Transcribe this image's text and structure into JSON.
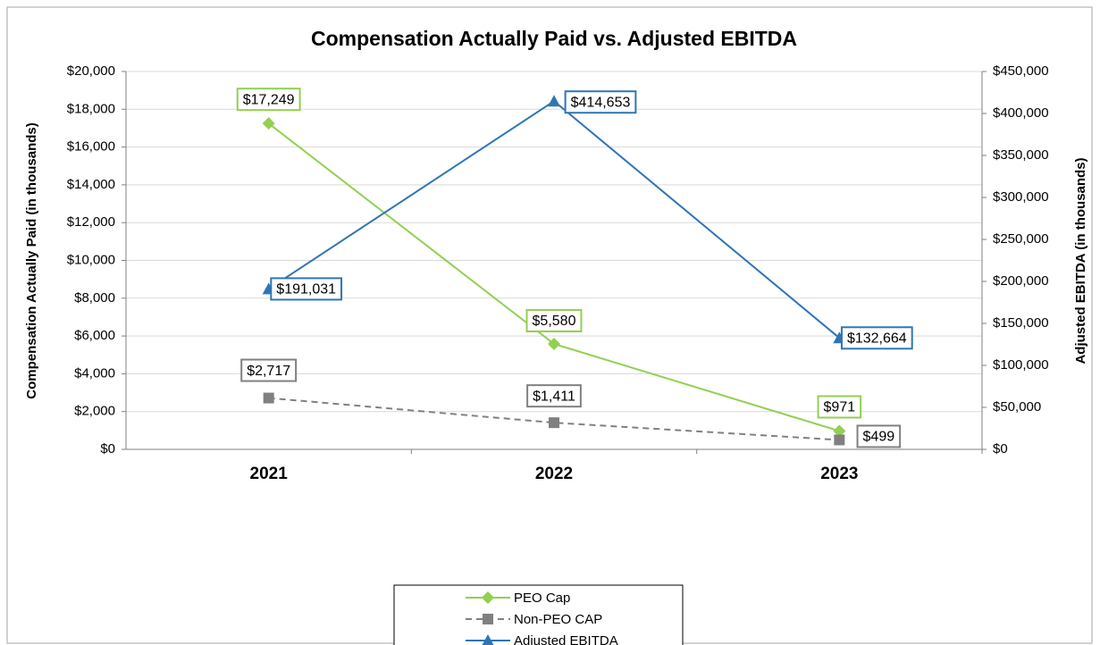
{
  "chart_data": {
    "type": "line",
    "title": "Compensation Actually Paid vs. Adjusted EBITDA",
    "categories": [
      "2021",
      "2022",
      "2023"
    ],
    "ylabel": "Compensation Actually Paid (in thousands)",
    "y2label": "Adjusted EBITDA (in thousands)",
    "ylim": [
      0,
      20000
    ],
    "yticks": [
      {
        "value": 0,
        "label": "$0"
      },
      {
        "value": 2000,
        "label": "$2,000"
      },
      {
        "value": 4000,
        "label": "$4,000"
      },
      {
        "value": 6000,
        "label": "$6,000"
      },
      {
        "value": 8000,
        "label": "$8,000"
      },
      {
        "value": 10000,
        "label": "$10,000"
      },
      {
        "value": 12000,
        "label": "$12,000"
      },
      {
        "value": 14000,
        "label": "$14,000"
      },
      {
        "value": 16000,
        "label": "$16,000"
      },
      {
        "value": 18000,
        "label": "$18,000"
      },
      {
        "value": 20000,
        "label": "$20,000"
      }
    ],
    "y2lim": [
      0,
      450000
    ],
    "y2ticks": [
      {
        "value": 0,
        "label": "$0"
      },
      {
        "value": 50000,
        "label": "$50,000"
      },
      {
        "value": 100000,
        "label": "$100,000"
      },
      {
        "value": 150000,
        "label": "$150,000"
      },
      {
        "value": 200000,
        "label": "$200,000"
      },
      {
        "value": 250000,
        "label": "$250,000"
      },
      {
        "value": 300000,
        "label": "$300,000"
      },
      {
        "value": 350000,
        "label": "$350,000"
      },
      {
        "value": 400000,
        "label": "$400,000"
      },
      {
        "value": 450000,
        "label": "$450,000"
      }
    ],
    "grid": true,
    "legend": "bottom",
    "series": [
      {
        "name": "PEO Cap",
        "color": "#92d050",
        "marker": "diamond",
        "dashed": false,
        "values": [
          17249,
          5580,
          971
        ],
        "value_labels": [
          "$17,249",
          "$5,580",
          "$971"
        ]
      },
      {
        "name": "Non-PEO CAP",
        "color": "#808080",
        "marker": "square",
        "dashed": true,
        "values": [
          2717,
          1411,
          499
        ],
        "value_labels": [
          "$2,717",
          "$1,411",
          "$499"
        ]
      },
      {
        "name": "Adjusted EBITDA",
        "color": "#2e75b6",
        "marker": "triangle",
        "dashed": false,
        "axis": "y2",
        "values": [
          191031,
          414653,
          132664
        ],
        "value_labels": [
          "$191,031",
          "$414,653",
          "$132,664"
        ]
      }
    ]
  }
}
